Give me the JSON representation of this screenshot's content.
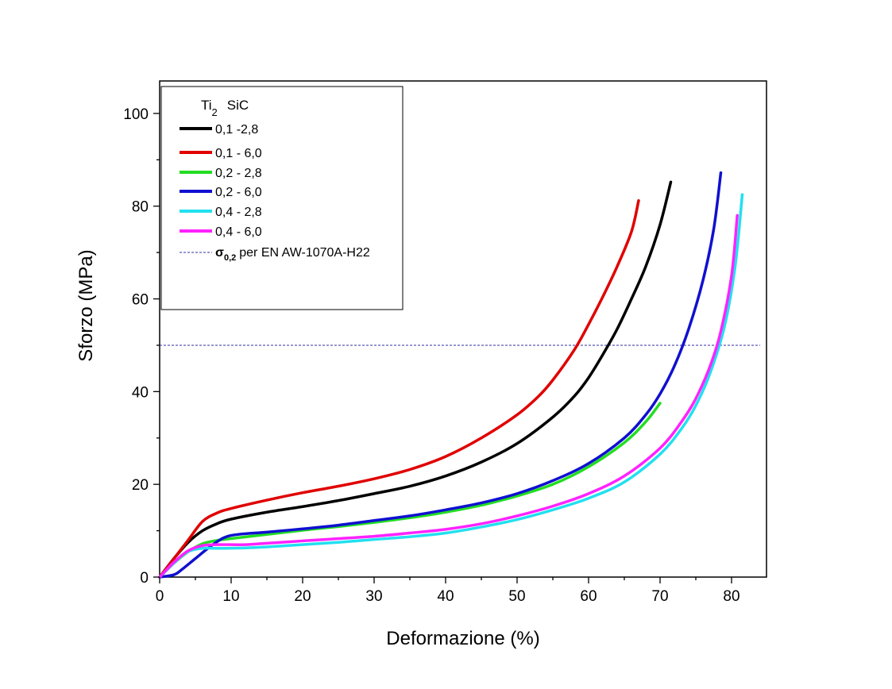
{
  "chart_data": {
    "type": "line",
    "xlabel": "Deformazione (%)",
    "ylabel": "Sforzo (MPa)",
    "xlim": [
      0,
      84
    ],
    "ylim": [
      0,
      107
    ],
    "xticks": [
      0,
      10,
      20,
      30,
      40,
      50,
      60,
      70,
      80
    ],
    "yticks": [
      0,
      20,
      40,
      60,
      80,
      100
    ],
    "grid": false,
    "legend": {
      "position": "top-left",
      "header_main": "Ti",
      "header_sub": "2",
      "header_second": "SiC"
    },
    "series": [
      {
        "name": "0,1  -2,8",
        "color": "#000000",
        "points": [
          [
            0,
            0
          ],
          [
            2,
            4
          ],
          [
            4,
            7.5
          ],
          [
            6,
            10
          ],
          [
            8,
            11.5
          ],
          [
            10,
            12.5
          ],
          [
            15,
            14
          ],
          [
            20,
            15.2
          ],
          [
            25,
            16.5
          ],
          [
            30,
            18
          ],
          [
            35,
            19.6
          ],
          [
            40,
            21.8
          ],
          [
            45,
            24.8
          ],
          [
            50,
            28.8
          ],
          [
            55,
            34.5
          ],
          [
            58,
            39
          ],
          [
            60,
            43
          ],
          [
            62,
            48
          ],
          [
            64,
            53.5
          ],
          [
            66,
            60
          ],
          [
            68,
            67
          ],
          [
            70,
            76
          ],
          [
            71.5,
            85.2
          ]
        ]
      },
      {
        "name": "0,1 - 6,0",
        "color": "#e00000",
        "points": [
          [
            0,
            0
          ],
          [
            2,
            4
          ],
          [
            4,
            8
          ],
          [
            6,
            12
          ],
          [
            8,
            13.8
          ],
          [
            10,
            14.8
          ],
          [
            15,
            16.6
          ],
          [
            20,
            18.2
          ],
          [
            25,
            19.6
          ],
          [
            30,
            21.2
          ],
          [
            35,
            23.2
          ],
          [
            40,
            26
          ],
          [
            45,
            30
          ],
          [
            50,
            35
          ],
          [
            53,
            39
          ],
          [
            55,
            42.5
          ],
          [
            58,
            49
          ],
          [
            60,
            54.5
          ],
          [
            62,
            60.5
          ],
          [
            64,
            67
          ],
          [
            66,
            74.5
          ],
          [
            67,
            81.2
          ]
        ]
      },
      {
        "name": "0,2 - 2,8",
        "color": "#22dd22",
        "points": [
          [
            0,
            0
          ],
          [
            2,
            3
          ],
          [
            4,
            5.5
          ],
          [
            6,
            7.2
          ],
          [
            8,
            7.9
          ],
          [
            10,
            8.3
          ],
          [
            15,
            9.2
          ],
          [
            20,
            10.1
          ],
          [
            25,
            10.9
          ],
          [
            30,
            11.8
          ],
          [
            35,
            12.8
          ],
          [
            40,
            14
          ],
          [
            45,
            15.5
          ],
          [
            50,
            17.5
          ],
          [
            55,
            20
          ],
          [
            60,
            23.8
          ],
          [
            65,
            29
          ],
          [
            68,
            33.5
          ],
          [
            70,
            37.5
          ]
        ]
      },
      {
        "name": "0,2 - 6,0",
        "color": "#1010d0",
        "points": [
          [
            0,
            0
          ],
          [
            2,
            0.5
          ],
          [
            3,
            1.5
          ],
          [
            5,
            4
          ],
          [
            7,
            6.5
          ],
          [
            9,
            8.5
          ],
          [
            11,
            9.2
          ],
          [
            15,
            9.7
          ],
          [
            20,
            10.4
          ],
          [
            25,
            11.2
          ],
          [
            30,
            12.2
          ],
          [
            35,
            13.2
          ],
          [
            40,
            14.5
          ],
          [
            45,
            16
          ],
          [
            50,
            18
          ],
          [
            55,
            20.8
          ],
          [
            60,
            24.5
          ],
          [
            65,
            30
          ],
          [
            68,
            35
          ],
          [
            70,
            39.5
          ],
          [
            72,
            45.5
          ],
          [
            74,
            53.5
          ],
          [
            76,
            64
          ],
          [
            77.5,
            75
          ],
          [
            78.5,
            87.2
          ]
        ]
      },
      {
        "name": "0,4 - 2,8",
        "color": "#22e0f0",
        "points": [
          [
            0,
            0
          ],
          [
            2,
            3
          ],
          [
            4,
            5.5
          ],
          [
            6,
            6.2
          ],
          [
            8,
            6.2
          ],
          [
            12,
            6.3
          ],
          [
            15,
            6.5
          ],
          [
            20,
            7
          ],
          [
            25,
            7.5
          ],
          [
            30,
            8.1
          ],
          [
            35,
            8.7
          ],
          [
            40,
            9.5
          ],
          [
            45,
            10.8
          ],
          [
            50,
            12.4
          ],
          [
            55,
            14.5
          ],
          [
            60,
            17
          ],
          [
            65,
            20.5
          ],
          [
            70,
            26.5
          ],
          [
            73,
            32
          ],
          [
            75,
            37
          ],
          [
            77,
            44
          ],
          [
            79,
            54
          ],
          [
            80.5,
            67
          ],
          [
            81.5,
            82.5
          ]
        ]
      },
      {
        "name": "0,4 - 6,0",
        "color": "#ff22ff",
        "points": [
          [
            0,
            0
          ],
          [
            2,
            3.2
          ],
          [
            4,
            5.7
          ],
          [
            6,
            6.8
          ],
          [
            8,
            7
          ],
          [
            12,
            7
          ],
          [
            15,
            7.3
          ],
          [
            20,
            7.8
          ],
          [
            25,
            8.3
          ],
          [
            30,
            8.8
          ],
          [
            35,
            9.5
          ],
          [
            40,
            10.3
          ],
          [
            45,
            11.5
          ],
          [
            50,
            13.2
          ],
          [
            55,
            15.3
          ],
          [
            60,
            18
          ],
          [
            65,
            21.8
          ],
          [
            70,
            27.8
          ],
          [
            73,
            33.5
          ],
          [
            75,
            38.5
          ],
          [
            77,
            45.5
          ],
          [
            78.5,
            53
          ],
          [
            80,
            65
          ],
          [
            80.8,
            78
          ]
        ]
      }
    ],
    "reference_line": {
      "label_symbol": "σ",
      "label_subscript": "0,2",
      "label_text": "per EN AW-1070A-H22",
      "y": 50,
      "color": "#3030a0"
    }
  }
}
